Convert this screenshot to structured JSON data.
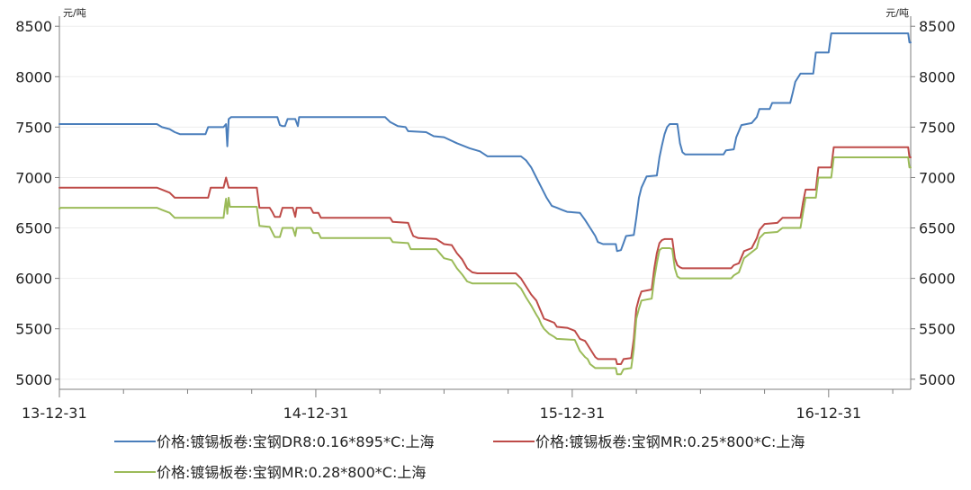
{
  "chart_data": {
    "type": "line",
    "unit_left": "元/吨",
    "unit_right": "元/吨",
    "x_tick_labels": [
      "13-12-31",
      "14-12-31",
      "15-12-31",
      "16-12-31"
    ],
    "ylim": [
      4900,
      8600
    ],
    "y_ticks": [
      5000,
      5500,
      6000,
      6500,
      7000,
      7500,
      8000,
      8500
    ],
    "grid": true,
    "legend_position": "bottom",
    "x_range": [
      0,
      3.32
    ],
    "series": [
      {
        "name": "价格:镀锡板卷:宝钢DR8:0.16*895*C:上海",
        "color": "#4a7ebb",
        "points": [
          [
            0,
            7530
          ],
          [
            0.38,
            7530
          ],
          [
            0.4,
            7500
          ],
          [
            0.43,
            7480
          ],
          [
            0.45,
            7450
          ],
          [
            0.47,
            7430
          ],
          [
            0.57,
            7430
          ],
          [
            0.58,
            7500
          ],
          [
            0.64,
            7500
          ],
          [
            0.65,
            7530
          ],
          [
            0.655,
            7310
          ],
          [
            0.66,
            7580
          ],
          [
            0.67,
            7600
          ],
          [
            0.85,
            7600
          ],
          [
            0.86,
            7520
          ],
          [
            0.87,
            7510
          ],
          [
            0.88,
            7510
          ],
          [
            0.89,
            7580
          ],
          [
            0.92,
            7580
          ],
          [
            0.93,
            7510
          ],
          [
            0.935,
            7600
          ],
          [
            1.27,
            7600
          ],
          [
            1.29,
            7550
          ],
          [
            1.32,
            7510
          ],
          [
            1.35,
            7500
          ],
          [
            1.36,
            7460
          ],
          [
            1.43,
            7450
          ],
          [
            1.46,
            7410
          ],
          [
            1.5,
            7400
          ],
          [
            1.55,
            7340
          ],
          [
            1.6,
            7290
          ],
          [
            1.64,
            7260
          ],
          [
            1.67,
            7210
          ],
          [
            1.8,
            7210
          ],
          [
            1.82,
            7170
          ],
          [
            1.84,
            7100
          ],
          [
            1.86,
            7000
          ],
          [
            1.88,
            6900
          ],
          [
            1.9,
            6800
          ],
          [
            1.92,
            6720
          ],
          [
            1.94,
            6700
          ],
          [
            1.96,
            6680
          ],
          [
            1.98,
            6660
          ],
          [
            2.03,
            6650
          ],
          [
            2.05,
            6580
          ],
          [
            2.07,
            6500
          ],
          [
            2.09,
            6420
          ],
          [
            2.1,
            6360
          ],
          [
            2.12,
            6340
          ],
          [
            2.17,
            6340
          ],
          [
            2.175,
            6270
          ],
          [
            2.19,
            6280
          ],
          [
            2.2,
            6350
          ],
          [
            2.21,
            6420
          ],
          [
            2.24,
            6430
          ],
          [
            2.25,
            6600
          ],
          [
            2.26,
            6800
          ],
          [
            2.27,
            6900
          ],
          [
            2.29,
            7010
          ],
          [
            2.33,
            7020
          ],
          [
            2.34,
            7200
          ],
          [
            2.35,
            7320
          ],
          [
            2.36,
            7430
          ],
          [
            2.37,
            7500
          ],
          [
            2.38,
            7530
          ],
          [
            2.41,
            7530
          ],
          [
            2.42,
            7340
          ],
          [
            2.43,
            7250
          ],
          [
            2.44,
            7230
          ],
          [
            2.59,
            7230
          ],
          [
            2.6,
            7270
          ],
          [
            2.63,
            7280
          ],
          [
            2.64,
            7400
          ],
          [
            2.66,
            7520
          ],
          [
            2.68,
            7530
          ],
          [
            2.7,
            7540
          ],
          [
            2.72,
            7600
          ],
          [
            2.73,
            7680
          ],
          [
            2.77,
            7680
          ],
          [
            2.78,
            7740
          ],
          [
            2.85,
            7740
          ],
          [
            2.86,
            7840
          ],
          [
            2.87,
            7950
          ],
          [
            2.89,
            8030
          ],
          [
            2.94,
            8030
          ],
          [
            2.95,
            8240
          ],
          [
            3.0,
            8240
          ],
          [
            3.01,
            8430
          ],
          [
            3.31,
            8430
          ],
          [
            3.315,
            8340
          ],
          [
            3.32,
            8340
          ]
        ]
      },
      {
        "name": "价格:镀锡板卷:宝钢MR:0.25*800*C:上海",
        "color": "#be4b48",
        "points": [
          [
            0,
            6900
          ],
          [
            0.38,
            6900
          ],
          [
            0.4,
            6880
          ],
          [
            0.43,
            6850
          ],
          [
            0.45,
            6800
          ],
          [
            0.58,
            6800
          ],
          [
            0.59,
            6900
          ],
          [
            0.64,
            6900
          ],
          [
            0.645,
            6950
          ],
          [
            0.65,
            7000
          ],
          [
            0.66,
            6900
          ],
          [
            0.77,
            6900
          ],
          [
            0.78,
            6700
          ],
          [
            0.82,
            6700
          ],
          [
            0.83,
            6660
          ],
          [
            0.84,
            6610
          ],
          [
            0.86,
            6610
          ],
          [
            0.87,
            6700
          ],
          [
            0.91,
            6700
          ],
          [
            0.92,
            6610
          ],
          [
            0.925,
            6700
          ],
          [
            0.98,
            6700
          ],
          [
            0.99,
            6650
          ],
          [
            1.01,
            6650
          ],
          [
            1.02,
            6600
          ],
          [
            1.29,
            6600
          ],
          [
            1.3,
            6560
          ],
          [
            1.36,
            6550
          ],
          [
            1.37,
            6480
          ],
          [
            1.38,
            6420
          ],
          [
            1.4,
            6400
          ],
          [
            1.47,
            6390
          ],
          [
            1.5,
            6340
          ],
          [
            1.53,
            6330
          ],
          [
            1.55,
            6250
          ],
          [
            1.57,
            6190
          ],
          [
            1.59,
            6100
          ],
          [
            1.61,
            6060
          ],
          [
            1.63,
            6050
          ],
          [
            1.78,
            6050
          ],
          [
            1.8,
            6000
          ],
          [
            1.82,
            5920
          ],
          [
            1.84,
            5840
          ],
          [
            1.86,
            5780
          ],
          [
            1.87,
            5720
          ],
          [
            1.88,
            5660
          ],
          [
            1.89,
            5600
          ],
          [
            1.91,
            5580
          ],
          [
            1.93,
            5560
          ],
          [
            1.94,
            5520
          ],
          [
            1.98,
            5510
          ],
          [
            2.01,
            5480
          ],
          [
            2.03,
            5400
          ],
          [
            2.05,
            5380
          ],
          [
            2.06,
            5340
          ],
          [
            2.07,
            5300
          ],
          [
            2.09,
            5220
          ],
          [
            2.1,
            5200
          ],
          [
            2.17,
            5200
          ],
          [
            2.175,
            5150
          ],
          [
            2.19,
            5150
          ],
          [
            2.2,
            5200
          ],
          [
            2.23,
            5210
          ],
          [
            2.24,
            5400
          ],
          [
            2.25,
            5700
          ],
          [
            2.26,
            5800
          ],
          [
            2.27,
            5870
          ],
          [
            2.29,
            5880
          ],
          [
            2.31,
            5890
          ],
          [
            2.32,
            6100
          ],
          [
            2.33,
            6250
          ],
          [
            2.34,
            6350
          ],
          [
            2.35,
            6380
          ],
          [
            2.36,
            6390
          ],
          [
            2.38,
            6390
          ],
          [
            2.39,
            6390
          ],
          [
            2.4,
            6200
          ],
          [
            2.41,
            6130
          ],
          [
            2.42,
            6110
          ],
          [
            2.43,
            6100
          ],
          [
            2.62,
            6100
          ],
          [
            2.63,
            6130
          ],
          [
            2.65,
            6150
          ],
          [
            2.67,
            6270
          ],
          [
            2.7,
            6300
          ],
          [
            2.72,
            6400
          ],
          [
            2.73,
            6480
          ],
          [
            2.75,
            6540
          ],
          [
            2.8,
            6550
          ],
          [
            2.82,
            6600
          ],
          [
            2.89,
            6600
          ],
          [
            2.9,
            6750
          ],
          [
            2.91,
            6880
          ],
          [
            2.95,
            6880
          ],
          [
            2.96,
            7100
          ],
          [
            3.01,
            7100
          ],
          [
            3.02,
            7300
          ],
          [
            3.31,
            7300
          ],
          [
            3.315,
            7200
          ],
          [
            3.32,
            7200
          ]
        ]
      },
      {
        "name": "价格:镀锡板卷:宝钢MR:0.28*800*C:上海",
        "color": "#9bbb59",
        "points": [
          [
            0,
            6690
          ],
          [
            0.005,
            6700
          ],
          [
            0.38,
            6700
          ],
          [
            0.4,
            6680
          ],
          [
            0.43,
            6650
          ],
          [
            0.45,
            6600
          ],
          [
            0.58,
            6600
          ],
          [
            0.64,
            6600
          ],
          [
            0.645,
            6700
          ],
          [
            0.65,
            6790
          ],
          [
            0.655,
            6640
          ],
          [
            0.66,
            6800
          ],
          [
            0.665,
            6710
          ],
          [
            0.77,
            6710
          ],
          [
            0.78,
            6520
          ],
          [
            0.82,
            6510
          ],
          [
            0.84,
            6410
          ],
          [
            0.86,
            6410
          ],
          [
            0.87,
            6500
          ],
          [
            0.91,
            6500
          ],
          [
            0.92,
            6420
          ],
          [
            0.925,
            6500
          ],
          [
            0.98,
            6500
          ],
          [
            0.99,
            6450
          ],
          [
            1.01,
            6450
          ],
          [
            1.02,
            6400
          ],
          [
            1.29,
            6400
          ],
          [
            1.3,
            6360
          ],
          [
            1.36,
            6350
          ],
          [
            1.37,
            6290
          ],
          [
            1.47,
            6290
          ],
          [
            1.5,
            6200
          ],
          [
            1.53,
            6180
          ],
          [
            1.55,
            6100
          ],
          [
            1.57,
            6040
          ],
          [
            1.59,
            5970
          ],
          [
            1.61,
            5950
          ],
          [
            1.78,
            5950
          ],
          [
            1.8,
            5900
          ],
          [
            1.82,
            5810
          ],
          [
            1.84,
            5730
          ],
          [
            1.86,
            5640
          ],
          [
            1.87,
            5600
          ],
          [
            1.88,
            5540
          ],
          [
            1.89,
            5500
          ],
          [
            1.91,
            5450
          ],
          [
            1.93,
            5420
          ],
          [
            1.94,
            5400
          ],
          [
            2.01,
            5390
          ],
          [
            2.03,
            5280
          ],
          [
            2.05,
            5220
          ],
          [
            2.06,
            5200
          ],
          [
            2.07,
            5150
          ],
          [
            2.09,
            5110
          ],
          [
            2.17,
            5110
          ],
          [
            2.175,
            5050
          ],
          [
            2.19,
            5050
          ],
          [
            2.2,
            5100
          ],
          [
            2.23,
            5110
          ],
          [
            2.24,
            5300
          ],
          [
            2.25,
            5600
          ],
          [
            2.26,
            5700
          ],
          [
            2.27,
            5780
          ],
          [
            2.29,
            5790
          ],
          [
            2.31,
            5800
          ],
          [
            2.32,
            6000
          ],
          [
            2.33,
            6150
          ],
          [
            2.34,
            6280
          ],
          [
            2.35,
            6300
          ],
          [
            2.38,
            6300
          ],
          [
            2.39,
            6290
          ],
          [
            2.4,
            6100
          ],
          [
            2.41,
            6020
          ],
          [
            2.42,
            6000
          ],
          [
            2.62,
            6000
          ],
          [
            2.63,
            6030
          ],
          [
            2.65,
            6060
          ],
          [
            2.67,
            6200
          ],
          [
            2.72,
            6300
          ],
          [
            2.73,
            6400
          ],
          [
            2.75,
            6450
          ],
          [
            2.8,
            6460
          ],
          [
            2.82,
            6500
          ],
          [
            2.89,
            6500
          ],
          [
            2.9,
            6650
          ],
          [
            2.91,
            6800
          ],
          [
            2.95,
            6800
          ],
          [
            2.96,
            7000
          ],
          [
            3.01,
            7000
          ],
          [
            3.02,
            7200
          ],
          [
            3.31,
            7200
          ],
          [
            3.315,
            7100
          ],
          [
            3.32,
            7100
          ]
        ]
      }
    ]
  }
}
